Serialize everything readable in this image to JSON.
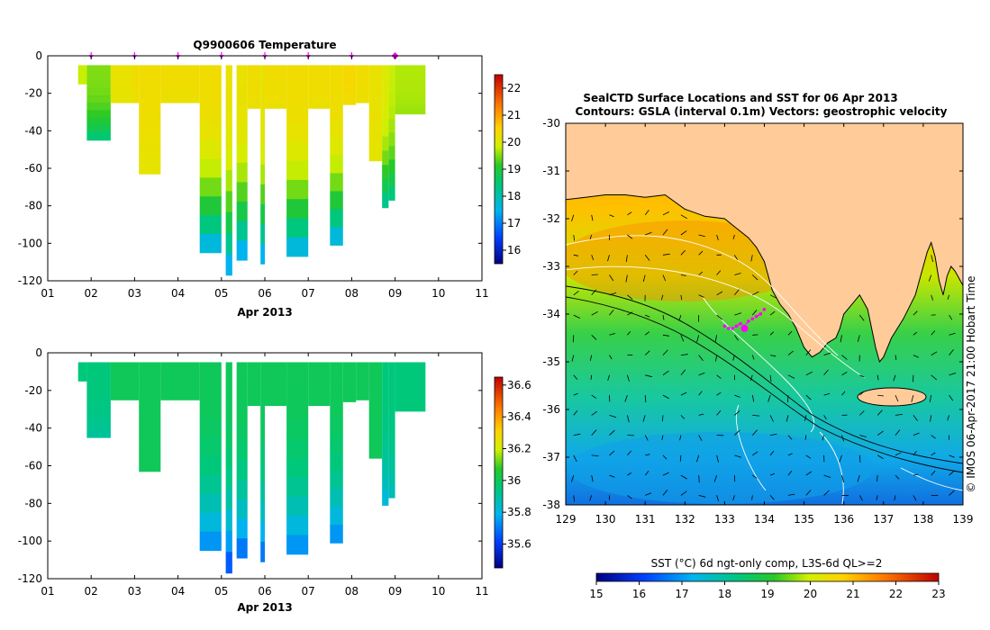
{
  "colors": {
    "land": "#ffcc99",
    "marker": "#ff00ff",
    "axis": "#000000"
  },
  "chart_data": [
    {
      "id": "temperature",
      "type": "heatmap",
      "title": "Q9900606  Temperature",
      "xlabel": "Apr 2013",
      "xlim": [
        1,
        11
      ],
      "ylim": [
        -120,
        0
      ],
      "xticks": [
        "01",
        "02",
        "03",
        "04",
        "05",
        "06",
        "07",
        "08",
        "09",
        "10",
        "11"
      ],
      "yticks": [
        "0",
        "-20",
        "-40",
        "-60",
        "-80",
        "-100",
        "-120"
      ],
      "colorbar": {
        "ticks": [
          "22",
          "21",
          "20",
          "19",
          "18",
          "17",
          "16"
        ],
        "min": 15.5,
        "max": 22.5
      },
      "profile_markers": [
        2.0,
        3.0,
        4.0,
        5.0,
        6.0,
        7.0,
        8.0
      ],
      "current_marker": 9.0,
      "profiles": [
        {
          "x0": 1.7,
          "x1": 1.9,
          "depth": 15,
          "surface": 19.8,
          "deep": 19.8
        },
        {
          "x0": 1.9,
          "x1": 2.45,
          "depth": 45,
          "surface": 19.5,
          "deep": 18.3
        },
        {
          "x0": 2.45,
          "x1": 2.95,
          "depth": 25,
          "surface": 20.2,
          "deep": 20.1
        },
        {
          "x0": 2.95,
          "x1": 3.1,
          "depth": 25,
          "surface": 20.3,
          "deep": 20.2
        },
        {
          "x0": 3.1,
          "x1": 3.6,
          "depth": 63,
          "surface": 20.3,
          "deep": 20.1
        },
        {
          "x0": 3.6,
          "x1": 4.5,
          "depth": 25,
          "surface": 20.3,
          "deep": 20.2
        },
        {
          "x0": 4.5,
          "x1": 5.0,
          "depth": 105,
          "surface": 20.3,
          "deep": 17.2
        },
        {
          "x0": 5.1,
          "x1": 5.25,
          "depth": 117,
          "surface": 20.2,
          "deep": 17.0
        },
        {
          "x0": 5.35,
          "x1": 5.6,
          "depth": 109,
          "surface": 20.2,
          "deep": 17.0
        },
        {
          "x0": 5.6,
          "x1": 5.9,
          "depth": 28,
          "surface": 20.3,
          "deep": 20.2
        },
        {
          "x0": 5.9,
          "x1": 6.0,
          "depth": 111,
          "surface": 20.2,
          "deep": 17.0
        },
        {
          "x0": 6.0,
          "x1": 6.5,
          "depth": 28,
          "surface": 20.3,
          "deep": 20.2
        },
        {
          "x0": 6.5,
          "x1": 7.0,
          "depth": 107,
          "surface": 20.3,
          "deep": 17.2
        },
        {
          "x0": 7.0,
          "x1": 7.5,
          "depth": 28,
          "surface": 20.3,
          "deep": 20.2
        },
        {
          "x0": 7.5,
          "x1": 7.8,
          "depth": 101,
          "surface": 20.3,
          "deep": 17.2
        },
        {
          "x0": 7.8,
          "x1": 8.1,
          "depth": 26,
          "surface": 20.4,
          "deep": 20.3
        },
        {
          "x0": 8.1,
          "x1": 8.4,
          "depth": 25,
          "surface": 20.3,
          "deep": 20.2
        },
        {
          "x0": 8.4,
          "x1": 8.7,
          "depth": 56,
          "surface": 20.2,
          "deep": 20.1
        },
        {
          "x0": 8.7,
          "x1": 8.85,
          "depth": 81,
          "surface": 20.0,
          "deep": 18.0
        },
        {
          "x0": 8.85,
          "x1": 9.0,
          "depth": 77,
          "surface": 19.8,
          "deep": 18.2
        },
        {
          "x0": 9.0,
          "x1": 9.7,
          "depth": 31,
          "surface": 19.7,
          "deep": 19.6
        }
      ]
    },
    {
      "id": "salinity",
      "type": "heatmap",
      "title": "",
      "xlabel": "Apr 2013",
      "xlim": [
        1,
        11
      ],
      "ylim": [
        -120,
        0
      ],
      "xticks": [
        "01",
        "02",
        "03",
        "04",
        "05",
        "06",
        "07",
        "08",
        "09",
        "10",
        "11"
      ],
      "yticks": [
        "0",
        "-20",
        "-40",
        "-60",
        "-80",
        "-100",
        "-120"
      ],
      "colorbar": {
        "ticks": [
          "36.6",
          "36.4",
          "36.2",
          "36",
          "35.8",
          "35.6"
        ],
        "min": 35.45,
        "max": 36.65
      },
      "profiles": [
        {
          "x0": 1.7,
          "x1": 1.9,
          "depth": 15,
          "surface": 35.95,
          "deep": 35.95
        },
        {
          "x0": 1.9,
          "x1": 2.45,
          "depth": 45,
          "surface": 35.95,
          "deep": 35.9
        },
        {
          "x0": 2.45,
          "x1": 2.95,
          "depth": 25,
          "surface": 36.0,
          "deep": 36.0
        },
        {
          "x0": 2.95,
          "x1": 3.1,
          "depth": 25,
          "surface": 36.0,
          "deep": 36.0
        },
        {
          "x0": 3.1,
          "x1": 3.6,
          "depth": 63,
          "surface": 36.0,
          "deep": 36.0
        },
        {
          "x0": 3.6,
          "x1": 4.5,
          "depth": 25,
          "surface": 36.0,
          "deep": 36.0
        },
        {
          "x0": 4.5,
          "x1": 5.0,
          "depth": 105,
          "surface": 36.0,
          "deep": 35.7
        },
        {
          "x0": 5.1,
          "x1": 5.25,
          "depth": 117,
          "surface": 36.0,
          "deep": 35.6
        },
        {
          "x0": 5.35,
          "x1": 5.6,
          "depth": 109,
          "surface": 36.0,
          "deep": 35.65
        },
        {
          "x0": 5.6,
          "x1": 5.9,
          "depth": 28,
          "surface": 36.0,
          "deep": 36.0
        },
        {
          "x0": 5.9,
          "x1": 6.0,
          "depth": 111,
          "surface": 36.0,
          "deep": 35.65
        },
        {
          "x0": 6.0,
          "x1": 6.5,
          "depth": 28,
          "surface": 36.0,
          "deep": 36.0
        },
        {
          "x0": 6.5,
          "x1": 7.0,
          "depth": 107,
          "surface": 36.0,
          "deep": 35.7
        },
        {
          "x0": 7.0,
          "x1": 7.5,
          "depth": 28,
          "surface": 36.0,
          "deep": 36.0
        },
        {
          "x0": 7.5,
          "x1": 7.8,
          "depth": 101,
          "surface": 36.0,
          "deep": 35.7
        },
        {
          "x0": 7.8,
          "x1": 8.1,
          "depth": 26,
          "surface": 36.0,
          "deep": 36.0
        },
        {
          "x0": 8.1,
          "x1": 8.4,
          "depth": 25,
          "surface": 36.0,
          "deep": 36.0
        },
        {
          "x0": 8.4,
          "x1": 8.7,
          "depth": 56,
          "surface": 36.0,
          "deep": 36.0
        },
        {
          "x0": 8.7,
          "x1": 8.85,
          "depth": 81,
          "surface": 35.95,
          "deep": 35.8
        },
        {
          "x0": 8.85,
          "x1": 9.0,
          "depth": 77,
          "surface": 35.95,
          "deep": 35.85
        },
        {
          "x0": 9.0,
          "x1": 9.7,
          "depth": 31,
          "surface": 35.95,
          "deep": 35.95
        }
      ]
    },
    {
      "id": "sst-map",
      "type": "heatmap",
      "title_line1": "SealCTD Surface Locations and SST for 06 Apr 2013",
      "title_line2": "Contours: GSLA (interval 0.1m) Vectors: geostrophic velocity",
      "xlim": [
        129,
        139
      ],
      "ylim": [
        -38,
        -30
      ],
      "xticks": [
        "129",
        "130",
        "131",
        "132",
        "133",
        "134",
        "135",
        "136",
        "137",
        "138",
        "139"
      ],
      "yticks": [
        "-30",
        "-31",
        "-32",
        "-33",
        "-34",
        "-35",
        "-36",
        "-37",
        "-38"
      ],
      "side_label": "© IMOS 06-Apr-2017 21:00 Hobart Time",
      "colorbar": {
        "label": "SST (°C) 6d ngt-only comp, L3S-6d QL>=2",
        "ticks": [
          "15",
          "16",
          "17",
          "18",
          "19",
          "20",
          "21",
          "22",
          "23"
        ],
        "min": 15,
        "max": 23
      },
      "coast_lon": [
        129.0,
        129.5,
        130.0,
        130.5,
        131.0,
        131.5,
        132.0,
        132.5,
        133.0,
        133.3,
        133.6,
        133.8,
        134.0,
        134.1,
        134.2,
        134.4,
        134.6,
        134.8,
        135.0,
        135.2,
        135.4,
        135.6,
        135.8,
        135.9,
        136.0,
        136.2,
        136.4,
        136.6,
        136.7,
        136.8,
        136.9,
        137.0,
        137.2,
        137.5,
        137.8,
        138.0,
        138.1,
        138.2,
        138.3,
        138.4,
        138.5,
        138.6,
        138.7,
        138.8,
        139.0
      ],
      "coast_lat": [
        -31.6,
        -31.55,
        -31.5,
        -31.5,
        -31.55,
        -31.5,
        -31.8,
        -31.95,
        -32.0,
        -32.2,
        -32.4,
        -32.6,
        -32.9,
        -33.2,
        -33.5,
        -33.8,
        -34.0,
        -34.3,
        -34.7,
        -34.9,
        -34.8,
        -34.6,
        -34.5,
        -34.3,
        -34.0,
        -33.8,
        -33.6,
        -33.9,
        -34.3,
        -34.7,
        -35.0,
        -34.9,
        -34.5,
        -34.1,
        -33.6,
        -33.0,
        -32.7,
        -32.5,
        -32.8,
        -33.3,
        -33.6,
        -33.2,
        -33.0,
        -33.1,
        -33.4
      ],
      "track_lon": [
        133.0,
        133.1,
        133.2,
        133.3,
        133.4,
        133.5,
        133.6,
        133.7,
        133.8,
        133.9,
        134.0
      ],
      "track_lat": [
        -34.25,
        -34.3,
        -34.3,
        -34.25,
        -34.2,
        -34.25,
        -34.15,
        -34.1,
        -34.05,
        -34.0,
        -33.9
      ],
      "current_position": {
        "lon": 133.5,
        "lat": -34.3
      }
    }
  ]
}
